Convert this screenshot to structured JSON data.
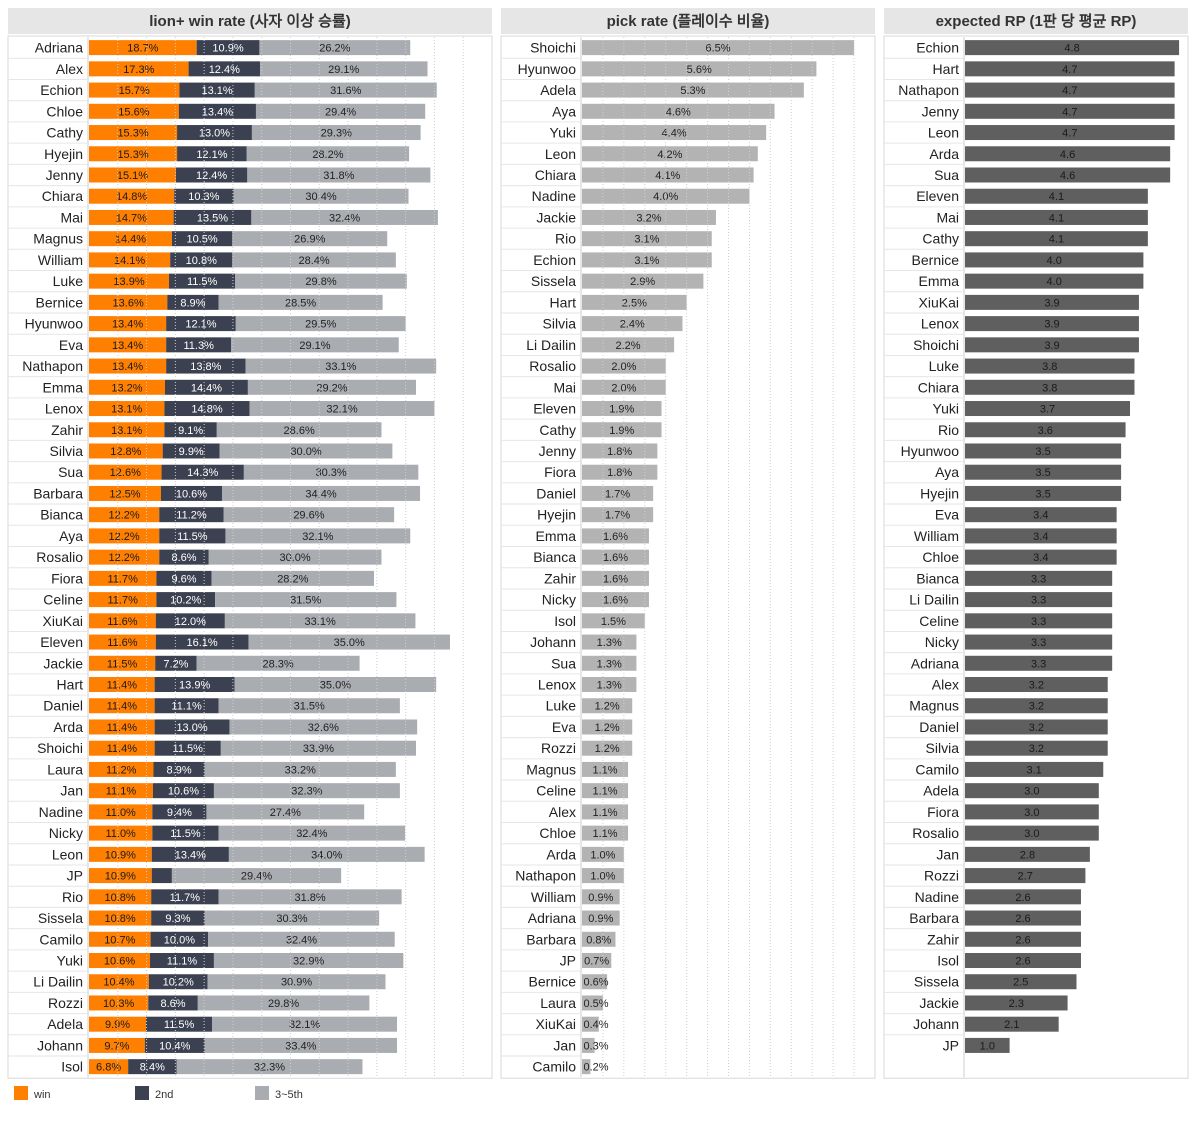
{
  "colors": {
    "win": "#ff8000",
    "second": "#3b4150",
    "third_fifth": "#a9acb0",
    "pick": "#b3b3b3",
    "rp": "#5f5f5f",
    "header_bg": "#e6e6e6"
  },
  "legend": [
    {
      "label": "win",
      "color": "#ff8000"
    },
    {
      "label": "2nd",
      "color": "#3b4150"
    },
    {
      "label": "3~5th",
      "color": "#a9acb0"
    }
  ],
  "chart_data": [
    {
      "type": "bar",
      "stacked": true,
      "orientation": "horizontal",
      "title": "lion+ win rate (사자 이상 승률)",
      "value_suffix": "%",
      "xlim": [
        0,
        70
      ],
      "grid": true,
      "categories": [
        "Adriana",
        "Alex",
        "Echion",
        "Chloe",
        "Cathy",
        "Hyejin",
        "Jenny",
        "Chiara",
        "Mai",
        "Magnus",
        "William",
        "Luke",
        "Bernice",
        "Hyunwoo",
        "Eva",
        "Nathapon",
        "Emma",
        "Lenox",
        "Zahir",
        "Silvia",
        "Sua",
        "Barbara",
        "Bianca",
        "Aya",
        "Rosalio",
        "Fiora",
        "Celine",
        "XiuKai",
        "Eleven",
        "Jackie",
        "Hart",
        "Daniel",
        "Arda",
        "Shoichi",
        "Laura",
        "Jan",
        "Nadine",
        "Nicky",
        "Leon",
        "JP",
        "Rio",
        "Sissela",
        "Camilo",
        "Yuki",
        "Li Dailin",
        "Rozzi",
        "Adela",
        "Johann",
        "Isol"
      ],
      "series": [
        {
          "name": "win",
          "values": [
            18.7,
            17.3,
            15.7,
            15.6,
            15.3,
            15.3,
            15.1,
            14.8,
            14.7,
            14.4,
            14.1,
            13.9,
            13.6,
            13.4,
            13.4,
            13.4,
            13.2,
            13.1,
            13.1,
            12.8,
            12.6,
            12.5,
            12.2,
            12.2,
            12.2,
            11.7,
            11.7,
            11.6,
            11.6,
            11.5,
            11.4,
            11.4,
            11.4,
            11.4,
            11.2,
            11.1,
            11.0,
            11.0,
            10.9,
            10.9,
            10.8,
            10.8,
            10.7,
            10.6,
            10.4,
            10.3,
            9.9,
            9.7,
            6.8
          ]
        },
        {
          "name": "2nd",
          "values": [
            10.9,
            12.4,
            13.1,
            13.4,
            13.0,
            12.1,
            12.4,
            10.3,
            13.5,
            10.5,
            10.8,
            11.5,
            8.9,
            12.1,
            11.3,
            13.8,
            14.4,
            14.8,
            9.1,
            9.9,
            14.3,
            10.6,
            11.2,
            11.5,
            8.6,
            9.6,
            10.2,
            12.0,
            16.1,
            7.2,
            13.9,
            11.1,
            13.0,
            11.5,
            8.9,
            10.6,
            9.4,
            11.5,
            13.4,
            3.5,
            11.7,
            9.3,
            10.0,
            11.1,
            10.2,
            8.6,
            11.5,
            10.4,
            8.4
          ]
        },
        {
          "name": "3~5th",
          "values": [
            26.2,
            29.1,
            31.6,
            29.4,
            29.3,
            28.2,
            31.8,
            30.4,
            32.4,
            26.9,
            28.4,
            29.8,
            28.5,
            29.5,
            29.1,
            33.1,
            29.2,
            32.1,
            28.6,
            30.0,
            30.3,
            34.4,
            29.6,
            32.1,
            30.0,
            28.2,
            31.5,
            33.1,
            35.0,
            28.3,
            35.0,
            31.5,
            32.6,
            33.9,
            33.2,
            32.3,
            27.4,
            32.4,
            34.0,
            29.4,
            31.8,
            30.3,
            32.4,
            32.9,
            30.9,
            29.8,
            32.1,
            33.4,
            32.3
          ]
        }
      ],
      "value_labels": {
        "win": [
          "18.7%",
          "17.3%",
          "15.7%",
          "15.6%",
          "15.3%",
          "15.3%",
          "15.1%",
          "14.8%",
          "14.7%",
          "14.4%",
          "14.1%",
          "13.9%",
          "13.6%",
          "13.4%",
          "13.4%",
          "13.4%",
          "13.2%",
          "13.1%",
          "13.1%",
          "12.8%",
          "12.6%",
          "12.5%",
          "12.2%",
          "12.2%",
          "12.2%",
          "11.7%",
          "11.7%",
          "11.6%",
          "11.6%",
          "11.5%",
          "11.4%",
          "11.4%",
          "11.4%",
          "11.4%",
          "11.2%",
          "11.1%",
          "11.0%",
          "11.0%",
          "10.9%",
          "10.9%",
          "10.8%",
          "10.8%",
          "10.7%",
          "10.6%",
          "10.4%",
          "10.3%",
          "9.9%",
          "9.7%",
          "6.8%"
        ],
        "2nd": [
          "10.9%",
          "12.4%",
          "13.1%",
          "13.4%",
          "13.0%",
          "12.1%",
          "12.4%",
          "10.3%",
          "13.5%",
          "10.5%",
          "10.8%",
          "11.5%",
          "8.9%",
          "12.1%",
          "11.3%",
          "13.8%",
          "14.4%",
          "14.8%",
          "9.1%",
          "9.9%",
          "14.3%",
          "10.6%",
          "11.2%",
          "11.5%",
          "8.6%",
          "9.6%",
          "10.2%",
          "12.0%",
          "16.1%",
          "7.2%",
          "13.9%",
          "11.1%",
          "13.0%",
          "11.5%",
          "8.9%",
          "10.6%",
          "9.4%",
          "11.5%",
          "13.4%",
          "",
          "11.7%",
          "9.3%",
          "10.0%",
          "11.1%",
          "10.2%",
          "8.6%",
          "11.5%",
          "10.4%",
          "8.4%"
        ],
        "3~5th": [
          "26.2%",
          "29.1%",
          "31.6%",
          "29.4%",
          "29.3%",
          "28.2%",
          "31.8%",
          "30.4%",
          "32.4%",
          "26.9%",
          "28.4%",
          "29.8%",
          "28.5%",
          "29.5%",
          "29.1%",
          "33.1%",
          "29.2%",
          "32.1%",
          "28.6%",
          "30.0%",
          "30.3%",
          "34.4%",
          "29.6%",
          "32.1%",
          "30.0%",
          "28.2%",
          "31.5%",
          "33.1%",
          "35.0%",
          "28.3%",
          "35.0%",
          "31.5%",
          "32.6%",
          "33.9%",
          "33.2%",
          "32.3%",
          "27.4%",
          "32.4%",
          "34.0%",
          "29.4%",
          "31.8%",
          "30.3%",
          "32.4%",
          "32.9%",
          "30.9%",
          "29.8%",
          "32.1%",
          "33.4%",
          "32.3%"
        ]
      }
    },
    {
      "type": "bar",
      "orientation": "horizontal",
      "title": "pick rate (플레이수 비율)",
      "value_suffix": "%",
      "xlim": [
        0,
        7.0
      ],
      "grid": true,
      "categories": [
        "Shoichi",
        "Hyunwoo",
        "Adela",
        "Aya",
        "Yuki",
        "Leon",
        "Chiara",
        "Nadine",
        "Jackie",
        "Rio",
        "Echion",
        "Sissela",
        "Hart",
        "Silvia",
        "Li Dailin",
        "Rosalio",
        "Mai",
        "Eleven",
        "Cathy",
        "Jenny",
        "Fiora",
        "Daniel",
        "Hyejin",
        "Emma",
        "Bianca",
        "Zahir",
        "Nicky",
        "Isol",
        "Johann",
        "Sua",
        "Lenox",
        "Luke",
        "Eva",
        "Rozzi",
        "Magnus",
        "Celine",
        "Alex",
        "Chloe",
        "Arda",
        "Nathapon",
        "William",
        "Adriana",
        "Barbara",
        "JP",
        "Bernice",
        "Laura",
        "XiuKai",
        "Jan",
        "Camilo"
      ],
      "values": [
        6.5,
        5.6,
        5.3,
        4.6,
        4.4,
        4.2,
        4.1,
        4.0,
        3.2,
        3.1,
        3.1,
        2.9,
        2.5,
        2.4,
        2.2,
        2.0,
        2.0,
        1.9,
        1.9,
        1.8,
        1.8,
        1.7,
        1.7,
        1.6,
        1.6,
        1.6,
        1.6,
        1.5,
        1.3,
        1.3,
        1.3,
        1.2,
        1.2,
        1.2,
        1.1,
        1.1,
        1.1,
        1.1,
        1.0,
        1.0,
        0.9,
        0.9,
        0.8,
        0.7,
        0.6,
        0.5,
        0.4,
        0.3,
        0.2
      ],
      "value_labels": [
        "6.5%",
        "5.6%",
        "5.3%",
        "4.6%",
        "4.4%",
        "4.2%",
        "4.1%",
        "4.0%",
        "3.2%",
        "3.1%",
        "3.1%",
        "2.9%",
        "2.5%",
        "2.4%",
        "2.2%",
        "2.0%",
        "2.0%",
        "1.9%",
        "1.9%",
        "1.8%",
        "1.8%",
        "1.7%",
        "1.7%",
        "1.6%",
        "1.6%",
        "1.6%",
        "1.6%",
        "1.5%",
        "1.3%",
        "1.3%",
        "1.3%",
        "1.2%",
        "1.2%",
        "1.2%",
        "1.1%",
        "1.1%",
        "1.1%",
        "1.1%",
        "1.0%",
        "1.0%",
        "0.9%",
        "0.9%",
        "0.8%",
        "0.7%",
        "0.6%",
        "0.5%",
        "0.4%",
        "0.3%",
        "0.2%"
      ]
    },
    {
      "type": "bar",
      "orientation": "horizontal",
      "title": "expected RP (1판 당 평균 RP)",
      "xlim": [
        0,
        5.0
      ],
      "grid": false,
      "categories": [
        "Echion",
        "Hart",
        "Nathapon",
        "Jenny",
        "Leon",
        "Arda",
        "Sua",
        "Eleven",
        "Mai",
        "Cathy",
        "Bernice",
        "Emma",
        "XiuKai",
        "Lenox",
        "Shoichi",
        "Luke",
        "Chiara",
        "Yuki",
        "Rio",
        "Hyunwoo",
        "Aya",
        "Hyejin",
        "Eva",
        "William",
        "Chloe",
        "Bianca",
        "Li Dailin",
        "Celine",
        "Nicky",
        "Adriana",
        "Alex",
        "Magnus",
        "Daniel",
        "Silvia",
        "Camilo",
        "Adela",
        "Fiora",
        "Rosalio",
        "Jan",
        "Rozzi",
        "Nadine",
        "Barbara",
        "Zahir",
        "Isol",
        "Sissela",
        "Jackie",
        "Johann",
        "JP"
      ],
      "values": [
        4.8,
        4.7,
        4.7,
        4.7,
        4.7,
        4.6,
        4.6,
        4.1,
        4.1,
        4.1,
        4.0,
        4.0,
        3.9,
        3.9,
        3.9,
        3.8,
        3.8,
        3.7,
        3.6,
        3.5,
        3.5,
        3.5,
        3.4,
        3.4,
        3.4,
        3.3,
        3.3,
        3.3,
        3.3,
        3.3,
        3.2,
        3.2,
        3.2,
        3.2,
        3.1,
        3.0,
        3.0,
        3.0,
        2.8,
        2.7,
        2.6,
        2.6,
        2.6,
        2.6,
        2.5,
        2.3,
        2.1,
        1.0
      ],
      "value_labels": [
        "4.8",
        "4.7",
        "4.7",
        "4.7",
        "4.7",
        "4.6",
        "4.6",
        "4.1",
        "4.1",
        "4.1",
        "4.0",
        "4.0",
        "3.9",
        "3.9",
        "3.9",
        "3.8",
        "3.8",
        "3.7",
        "3.6",
        "3.5",
        "3.5",
        "3.5",
        "3.4",
        "3.4",
        "3.4",
        "3.3",
        "3.3",
        "3.3",
        "3.3",
        "3.3",
        "3.2",
        "3.2",
        "3.2",
        "3.2",
        "3.1",
        "3.0",
        "3.0",
        "3.0",
        "2.8",
        "2.7",
        "2.6",
        "2.6",
        "2.6",
        "2.6",
        "2.5",
        "2.3",
        "2.1",
        "1.0"
      ]
    }
  ]
}
